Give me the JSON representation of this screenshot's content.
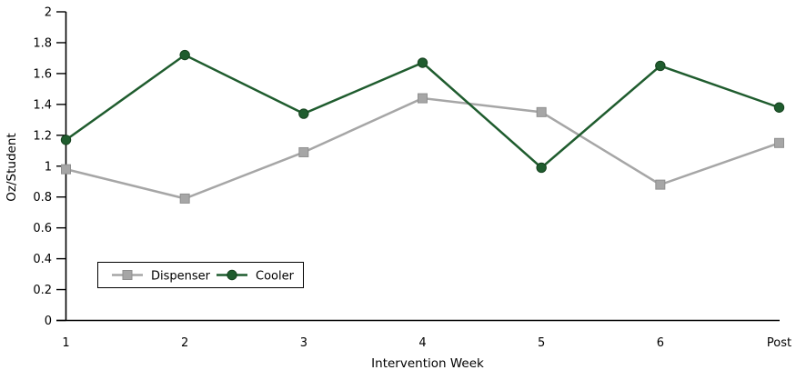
{
  "chart_data": {
    "type": "line",
    "title": "",
    "xlabel": "Intervention Week",
    "ylabel": "Oz/Student",
    "categories": [
      "1",
      "2",
      "3",
      "4",
      "5",
      "6",
      "Post"
    ],
    "series": [
      {
        "name": "Dispenser",
        "marker": "square",
        "color": "#a6a6a6",
        "marker_stroke": "#8f8f8f",
        "values": [
          0.98,
          0.79,
          1.09,
          1.44,
          1.35,
          0.88,
          1.15
        ]
      },
      {
        "name": "Cooler",
        "marker": "circle",
        "color": "#1f5c2e",
        "marker_stroke": "#16421f",
        "values": [
          1.17,
          1.72,
          1.34,
          1.67,
          0.99,
          1.65,
          1.38
        ]
      }
    ],
    "ylim": [
      0,
      2
    ],
    "ytick_step": 0.2,
    "ytick_labels": [
      "0",
      "0.2",
      "0.4",
      "0.6",
      "0.8",
      "1",
      "1.2",
      "1.4",
      "1.6",
      "1.8",
      "2"
    ],
    "grid": false,
    "legend_position": "inside-bottom-left",
    "axis_color": "#000000",
    "background": "#ffffff"
  }
}
